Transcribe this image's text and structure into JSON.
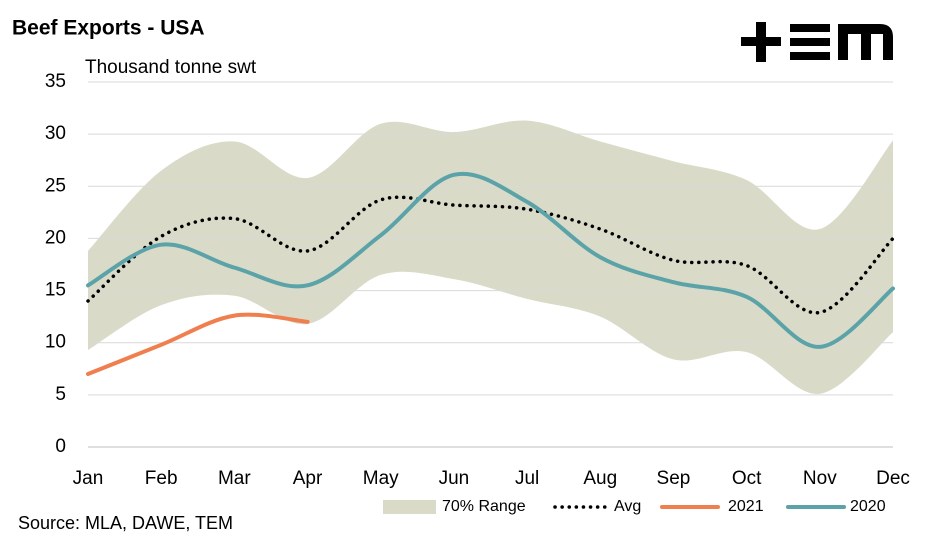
{
  "chart_data": {
    "type": "line",
    "title": "Beef Exports - USA",
    "y_axis_label": "Thousand tonne swt",
    "source": "Source: MLA, DAWE, TEM",
    "categories": [
      "Jan",
      "Feb",
      "Mar",
      "Apr",
      "May",
      "Jun",
      "Jul",
      "Aug",
      "Sep",
      "Oct",
      "Nov",
      "Dec"
    ],
    "range": {
      "name": "70% Range",
      "color": "#d9dbc8",
      "upper": [
        18.8,
        26.5,
        29.3,
        25.8,
        31,
        30.2,
        31.3,
        29.3,
        27.4,
        25.6,
        20.9,
        29.4
      ],
      "lower": [
        9.3,
        13.6,
        14.5,
        11.8,
        16.5,
        16.1,
        14.2,
        12.5,
        8.4,
        9.1,
        5.1,
        11
      ]
    },
    "series": [
      {
        "name": "Avg",
        "color": "#000000",
        "dotted": true,
        "values": [
          14,
          20.2,
          21.9,
          18.8,
          23.7,
          23.2,
          22.8,
          20.9,
          17.9,
          17.4,
          12.9,
          20
        ]
      },
      {
        "name": "2021",
        "color": "#f07f4f",
        "values": [
          7,
          9.8,
          12.6,
          12,
          null,
          null,
          null,
          null,
          null,
          null,
          null,
          null
        ]
      },
      {
        "name": "2020",
        "color": "#5ba3a8",
        "values": [
          15.5,
          19.4,
          17.2,
          15.5,
          20.3,
          26.1,
          23.5,
          18.2,
          15.8,
          14.4,
          9.6,
          15.2
        ]
      }
    ],
    "ylim": [
      0,
      35
    ],
    "yticks": [
      0,
      5,
      10,
      15,
      20,
      25,
      30,
      35
    ],
    "grid": true
  }
}
